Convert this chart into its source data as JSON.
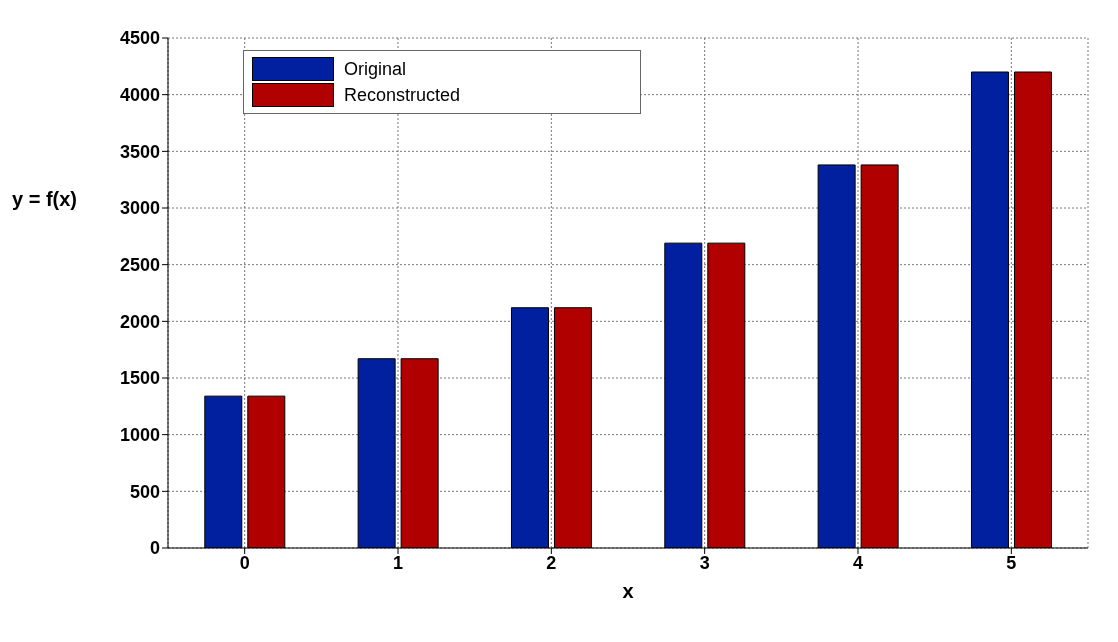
{
  "chart_data": {
    "type": "bar",
    "xlabel": "x",
    "ylabel": "y = f(x)",
    "categories": [
      "0",
      "1",
      "2",
      "3",
      "4",
      "5"
    ],
    "series": [
      {
        "name": "Original",
        "color": "#0020a0",
        "values": [
          1340,
          1670,
          2120,
          2690,
          3380,
          4200
        ]
      },
      {
        "name": "Reconstructed",
        "color": "#b00000",
        "values": [
          1340,
          1670,
          2120,
          2690,
          3380,
          4200
        ]
      }
    ],
    "ylim": [
      0,
      4500
    ],
    "yticks": [
      0,
      500,
      1000,
      1500,
      2000,
      2500,
      3000,
      3500,
      4000,
      4500
    ],
    "grid": true,
    "legend": "top left"
  }
}
